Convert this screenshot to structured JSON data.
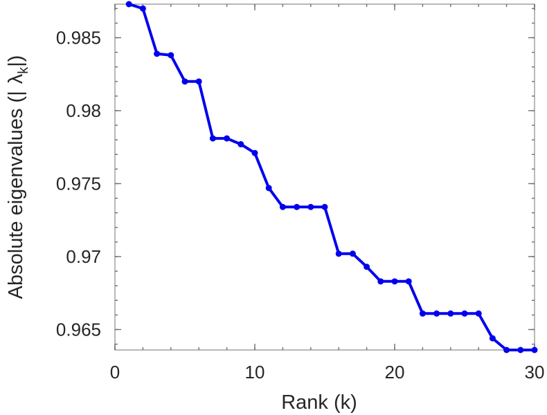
{
  "chart_data": {
    "type": "line",
    "xlabel": "Rank (k)",
    "ylabel": "Absolute eigenvalues (|λ_k|)",
    "ylabel_parts": {
      "before": "Absolute eigenvalues (|",
      "symbol": "λ",
      "subscript": "k",
      "after": "|)"
    },
    "xlim": [
      0,
      30
    ],
    "ylim": [
      0.9636,
      0.9873
    ],
    "xticks": [
      0,
      10,
      20,
      30
    ],
    "xtick_labels": [
      "0",
      "10",
      "20",
      "30"
    ],
    "yticks": [
      0.965,
      0.97,
      0.975,
      0.98,
      0.985
    ],
    "ytick_labels": [
      "0.965",
      "0.97",
      "0.975",
      "0.98",
      "0.985"
    ],
    "grid": false,
    "series": [
      {
        "color": "#0000ee",
        "marker": "circle",
        "x": [
          1,
          2,
          3,
          4,
          5,
          6,
          7,
          8,
          9,
          10,
          11,
          12,
          13,
          14,
          15,
          16,
          17,
          18,
          19,
          20,
          21,
          22,
          23,
          24,
          25,
          26,
          27,
          28,
          29,
          30
        ],
        "y": [
          0.9873,
          0.987,
          0.9839,
          0.9838,
          0.982,
          0.982,
          0.9781,
          0.9781,
          0.9777,
          0.9771,
          0.9747,
          0.9734,
          0.9734,
          0.9734,
          0.9734,
          0.9702,
          0.9702,
          0.9693,
          0.9683,
          0.9683,
          0.9683,
          0.9661,
          0.9661,
          0.9661,
          0.9661,
          0.9661,
          0.9644,
          0.9636,
          0.9636,
          0.9636
        ]
      }
    ]
  }
}
